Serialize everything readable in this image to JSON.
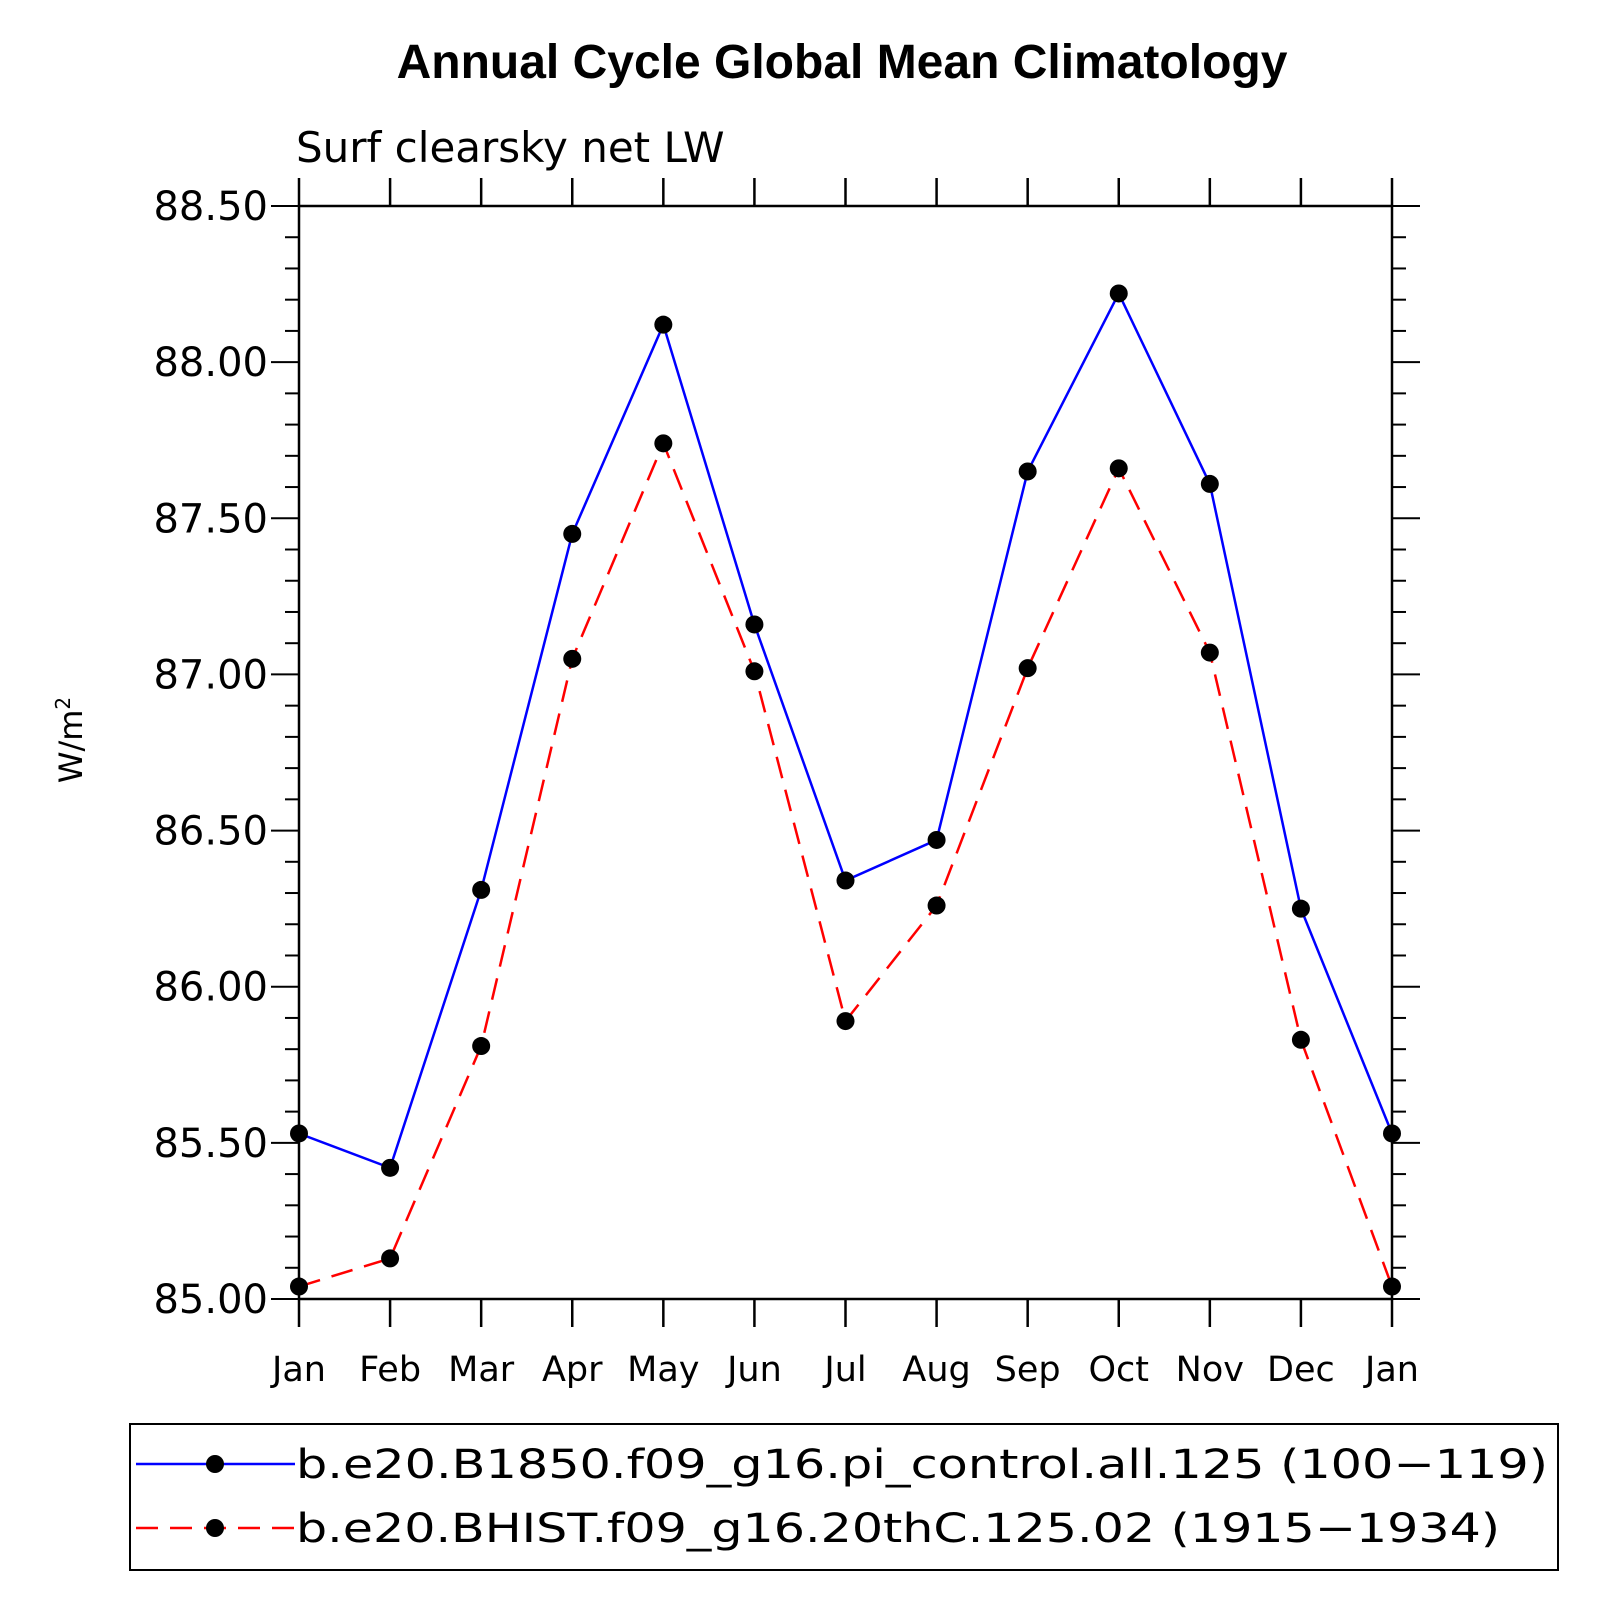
{
  "chart_data": {
    "type": "line",
    "title": "Annual Cycle Global Mean Climatology",
    "subtitle": "Surf clearsky net LW",
    "ylabel": "W/m",
    "ylabel_sup": "2",
    "categories": [
      "Jan",
      "Feb",
      "Mar",
      "Apr",
      "May",
      "Jun",
      "Jul",
      "Aug",
      "Sep",
      "Oct",
      "Nov",
      "Dec",
      "Jan"
    ],
    "ylim": [
      85.0,
      88.5
    ],
    "yticks": [
      "85.00",
      "85.50",
      "86.00",
      "86.50",
      "87.00",
      "87.50",
      "88.00",
      "88.50"
    ],
    "series": [
      {
        "name": "b.e20.B1850.f09_g16.pi_control.all.125 (100−119)",
        "color": "#0000ff",
        "dash": "solid",
        "values": [
          85.53,
          85.42,
          86.31,
          87.45,
          88.12,
          87.16,
          86.34,
          86.47,
          87.65,
          88.22,
          87.61,
          86.25,
          85.53
        ]
      },
      {
        "name": "b.e20.BHIST.f09_g16.20thC.125.02 (1915−1934)",
        "color": "#ff0000",
        "dash": "dashed",
        "values": [
          85.04,
          85.13,
          85.81,
          87.05,
          87.74,
          87.01,
          85.89,
          86.26,
          87.02,
          87.66,
          87.07,
          85.83,
          85.04
        ]
      }
    ]
  }
}
